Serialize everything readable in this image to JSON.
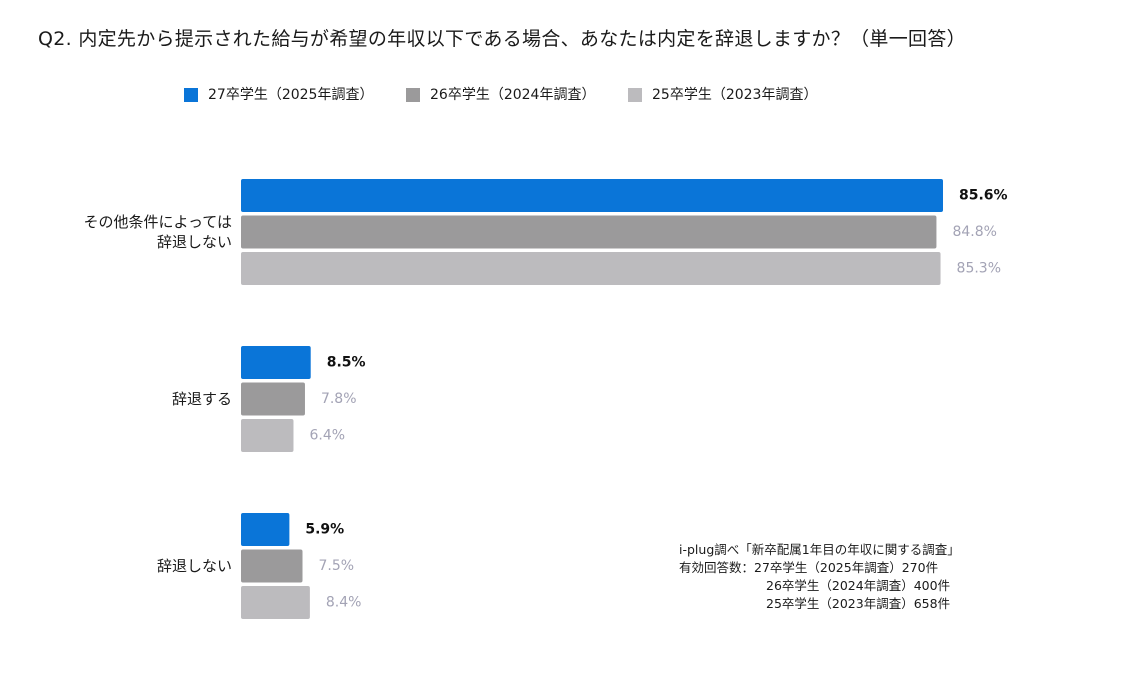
{
  "title": "Q2. 内定先から提示された給与が希望の年収以下である場合、あなたは内定を辞退しますか？（単一回答）",
  "chart_data": {
    "type": "bar",
    "orientation": "horizontal",
    "title": "Q2. 内定先から提示された給与が希望の年収以下である場合、あなたは内定を辞退しますか？（単一回答）",
    "categories": [
      {
        "label_lines": [
          "その他条件によっては",
          "辞退しない"
        ]
      },
      {
        "label_lines": [
          "辞退する"
        ]
      },
      {
        "label_lines": [
          "辞退しない"
        ]
      }
    ],
    "series": [
      {
        "name": "27卒学生（2025年調査）",
        "color": "#0a75d8",
        "label_color": "#111111",
        "label_bold": true,
        "values": [
          85.6,
          8.5,
          5.9
        ],
        "labels": [
          "85.6%",
          "8.5%",
          "5.9%"
        ]
      },
      {
        "name": "26卒学生（2024年調査）",
        "color": "#9b9a9b",
        "label_color": "#a3a3b5",
        "label_bold": false,
        "values": [
          84.8,
          7.8,
          7.5
        ],
        "labels": [
          "84.8%",
          "7.8%",
          "7.5%"
        ]
      },
      {
        "name": "25卒学生（2023年調査）",
        "color": "#bcbbbe",
        "label_color": "#a3a3b5",
        "label_bold": false,
        "values": [
          85.3,
          6.4,
          8.4
        ],
        "labels": [
          "85.3%",
          "6.4%",
          "8.4%"
        ]
      }
    ],
    "xlim": [
      0,
      100
    ],
    "unit": "%",
    "grid": false,
    "legend_position": "top"
  },
  "note": {
    "lines": [
      "i-plug調べ「新卒配属1年目の年収に関する調査」",
      "有効回答数：27卒学生（2025年調査）270件",
      "26卒学生（2024年調査）400件",
      "25卒学生（2023年調査）658件"
    ]
  }
}
